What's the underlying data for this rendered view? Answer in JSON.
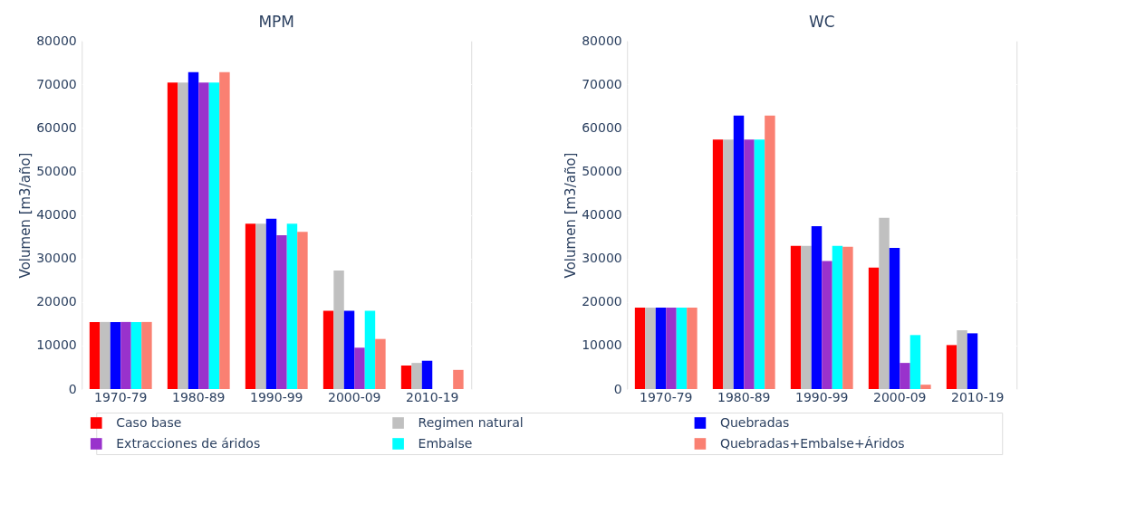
{
  "chart_data": [
    {
      "type": "bar",
      "title": "MPM",
      "ylabel": "Volumen [m3/año]",
      "categories": [
        "1970-79",
        "1980-89",
        "1990-99",
        "2000-09",
        "2010-19"
      ],
      "ylim": [
        0,
        80000
      ],
      "yticks": [
        0,
        10000,
        20000,
        30000,
        40000,
        50000,
        60000,
        70000,
        80000
      ],
      "grid": "y",
      "legend": "bottom",
      "series": [
        {
          "name": "Caso base",
          "color": "#ff0000",
          "values": [
            15400,
            70400,
            38000,
            18000,
            5400
          ]
        },
        {
          "name": "Regimen natural",
          "color": "#c0c0c0",
          "values": [
            15400,
            70400,
            38000,
            27200,
            6000
          ]
        },
        {
          "name": "Quebradas",
          "color": "#0000ff",
          "values": [
            15400,
            72800,
            39100,
            18000,
            6500
          ]
        },
        {
          "name": "Extracciones de áridos",
          "color": "#9932cc",
          "values": [
            15400,
            70400,
            35300,
            9500,
            null
          ]
        },
        {
          "name": "Embalse",
          "color": "#00ffff",
          "values": [
            15400,
            70400,
            38000,
            18000,
            null
          ]
        },
        {
          "name": "Quebradas+Embalse+Áridos",
          "color": "#fa8072",
          "values": [
            15400,
            72800,
            36100,
            11500,
            4400
          ]
        }
      ]
    },
    {
      "type": "bar",
      "title": "WC",
      "ylabel": "Volumen [m3/año]",
      "categories": [
        "1970-79",
        "1980-89",
        "1990-99",
        "2000-09",
        "2010-19"
      ],
      "ylim": [
        0,
        80000
      ],
      "yticks": [
        0,
        10000,
        20000,
        30000,
        40000,
        50000,
        60000,
        70000,
        80000
      ],
      "grid": "y",
      "legend": "bottom",
      "series": [
        {
          "name": "Caso base",
          "color": "#ff0000",
          "values": [
            18700,
            57300,
            32900,
            27900,
            10100
          ]
        },
        {
          "name": "Regimen natural",
          "color": "#c0c0c0",
          "values": [
            18700,
            57300,
            32900,
            39300,
            13500
          ]
        },
        {
          "name": "Quebradas",
          "color": "#0000ff",
          "values": [
            18700,
            62800,
            37400,
            32400,
            12800
          ]
        },
        {
          "name": "Extracciones de áridos",
          "color": "#9932cc",
          "values": [
            18700,
            57300,
            29400,
            6000,
            null
          ]
        },
        {
          "name": "Embalse",
          "color": "#00ffff",
          "values": [
            18700,
            57300,
            32900,
            12400,
            null
          ]
        },
        {
          "name": "Quebradas+Embalse+Áridos",
          "color": "#fa8072",
          "values": [
            18700,
            62800,
            32700,
            1000,
            null
          ]
        }
      ]
    }
  ]
}
